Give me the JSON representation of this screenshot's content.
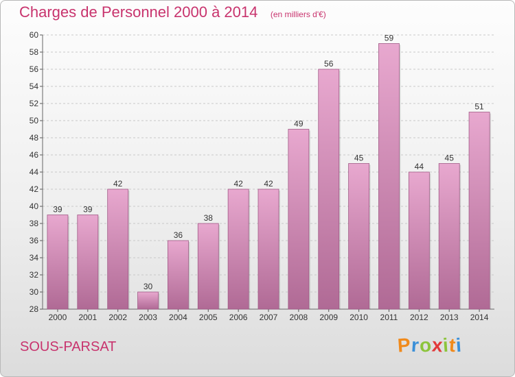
{
  "title": "Charges de Personnel 2000 à 2014",
  "unit_label": "(en milliers d'€)",
  "commune": "SOUS-PARSAT",
  "logo": {
    "letters": [
      "P",
      "r",
      "o",
      "x",
      "i",
      "t",
      "i"
    ],
    "colors": [
      "#f08a1c",
      "#3a8fd8",
      "#8cc43c",
      "#e23a3a",
      "#8cc43c",
      "#f08a1c",
      "#3a8fd8"
    ]
  },
  "colors": {
    "bar_top": "#e8a8cf",
    "bar_bottom": "#b06a95",
    "accent": "#c8336d",
    "grid": "#c8c8c8"
  },
  "chart_data": {
    "type": "bar",
    "categories": [
      "2000",
      "2001",
      "2002",
      "2003",
      "2004",
      "2005",
      "2006",
      "2007",
      "2008",
      "2009",
      "2010",
      "2011",
      "2012",
      "2013",
      "2014"
    ],
    "values": [
      39,
      39,
      42,
      30,
      36,
      38,
      42,
      42,
      49,
      56,
      45,
      59,
      44,
      45,
      51
    ],
    "ylim": [
      28,
      60
    ],
    "yticks": [
      28,
      30,
      32,
      34,
      36,
      38,
      40,
      42,
      44,
      46,
      48,
      50,
      52,
      54,
      56,
      58,
      60
    ],
    "grid": true,
    "xlabel": "",
    "ylabel": ""
  }
}
